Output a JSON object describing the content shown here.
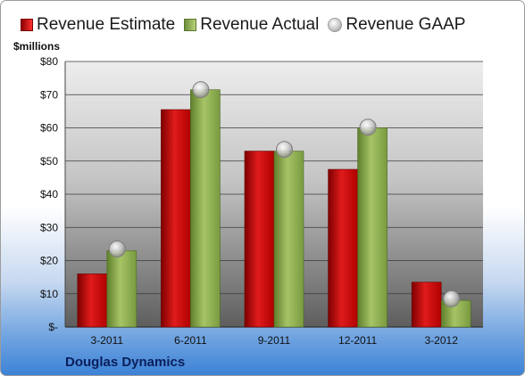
{
  "legend": {
    "estimate": "Revenue Estimate",
    "actual": "Revenue Actual",
    "gaap": "Revenue GAAP"
  },
  "units_label": "$millions",
  "company": "Douglas Dynamics",
  "colors": {
    "estimate": "#d41c1c",
    "actual": "#8fb04e",
    "gaap": "#c0c0c0"
  },
  "chart_data": {
    "type": "bar",
    "categories": [
      "3-2011",
      "6-2011",
      "9-2011",
      "12-2011",
      "3-2012"
    ],
    "series": [
      {
        "name": "Revenue Estimate",
        "type": "bar",
        "values": [
          16,
          65.5,
          53,
          47.5,
          13.5
        ]
      },
      {
        "name": "Revenue Actual",
        "type": "bar",
        "values": [
          23,
          71.5,
          53,
          60,
          8
        ]
      },
      {
        "name": "Revenue GAAP",
        "type": "scatter",
        "values": [
          23.5,
          71.5,
          53.5,
          60.2,
          8.5
        ]
      }
    ],
    "y_ticks": [
      "$-",
      "$10",
      "$20",
      "$30",
      "$40",
      "$50",
      "$60",
      "$70",
      "$80"
    ],
    "ylim": [
      0,
      80
    ],
    "ylabel": "$millions",
    "grid": true,
    "legend_position": "top"
  }
}
